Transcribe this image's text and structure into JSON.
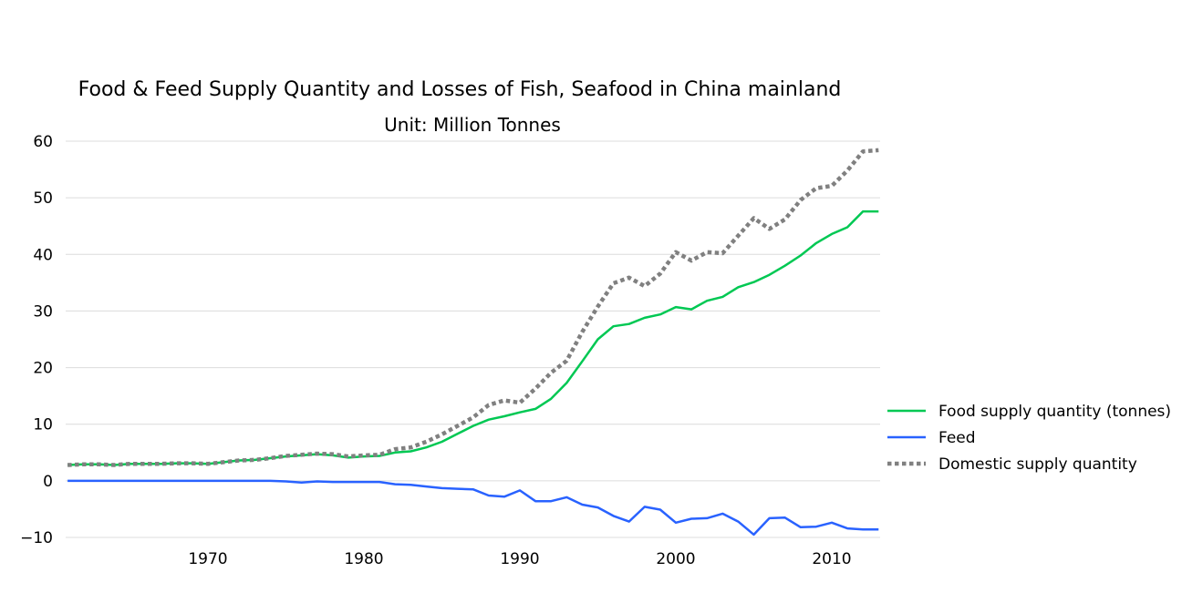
{
  "chart_data": {
    "type": "line",
    "title": "Food & Feed Supply Quantity and Losses of Fish, Seafood in China mainland",
    "subtitle": "Unit: Million Tonnes",
    "xlabel": "",
    "ylabel": "",
    "xlim": [
      1961,
      2013
    ],
    "ylim": [
      -10,
      62
    ],
    "grid": true,
    "legend_position": "right",
    "x_ticks": [
      1970,
      1980,
      1990,
      2000,
      2010
    ],
    "y_ticks": [
      -10,
      0,
      10,
      20,
      30,
      40,
      50,
      60
    ],
    "x_tick_labels": [
      "1970",
      "1980",
      "1990",
      "2000",
      "2010"
    ],
    "y_tick_labels": [
      "−10",
      "0",
      "10",
      "20",
      "30",
      "40",
      "50",
      "60"
    ],
    "x": [
      1961,
      1962,
      1963,
      1964,
      1965,
      1966,
      1967,
      1968,
      1969,
      1970,
      1971,
      1972,
      1973,
      1974,
      1975,
      1976,
      1977,
      1978,
      1979,
      1980,
      1981,
      1982,
      1983,
      1984,
      1985,
      1986,
      1987,
      1988,
      1989,
      1990,
      1991,
      1992,
      1993,
      1994,
      1995,
      1996,
      1997,
      1998,
      1999,
      2000,
      2001,
      2002,
      2003,
      2004,
      2005,
      2006,
      2007,
      2008,
      2009,
      2010,
      2011,
      2012,
      2013
    ],
    "series": [
      {
        "name": "Food supply quantity (tonnes)",
        "legend_label": "Food supply quantity (tonnes)",
        "color": "#00c853",
        "style": "solid",
        "values": [
          2.8,
          2.9,
          2.9,
          2.8,
          3.0,
          3.0,
          3.0,
          3.1,
          3.1,
          3.0,
          3.3,
          3.6,
          3.7,
          4.0,
          4.3,
          4.5,
          4.7,
          4.5,
          4.1,
          4.3,
          4.4,
          5.0,
          5.2,
          5.9,
          6.9,
          8.3,
          9.7,
          10.8,
          11.4,
          12.1,
          12.7,
          14.5,
          17.3,
          21.1,
          25.0,
          27.3,
          27.7,
          28.8,
          29.4,
          30.7,
          30.3,
          31.8,
          32.5,
          34.2,
          35.1,
          36.4,
          38.0,
          39.8,
          42.0,
          43.6,
          44.8,
          47.6,
          47.6
        ]
      },
      {
        "name": "Feed",
        "legend_label": "Feed",
        "color": "#2962ff",
        "style": "solid",
        "values": [
          0.0,
          0.0,
          0.0,
          0.0,
          0.0,
          0.0,
          0.0,
          0.0,
          0.0,
          0.0,
          0.0,
          0.0,
          0.0,
          0.0,
          -0.1,
          -0.3,
          -0.1,
          -0.2,
          -0.2,
          -0.2,
          -0.2,
          -0.6,
          -0.7,
          -1.0,
          -1.3,
          -1.4,
          -1.5,
          -2.6,
          -2.8,
          -1.7,
          -3.6,
          -3.6,
          -2.9,
          -4.2,
          -4.7,
          -6.2,
          -7.2,
          -4.6,
          -5.1,
          -7.4,
          -6.7,
          -6.6,
          -5.8,
          -7.2,
          -9.5,
          -6.6,
          -6.5,
          -8.2,
          -8.1,
          -7.4,
          -8.4,
          -8.6,
          -8.6
        ]
      },
      {
        "name": "Domestic supply quantity",
        "legend_label": "Domestic supply quantity",
        "color": "#808080",
        "style": "dotted",
        "values": [
          2.8,
          2.9,
          2.9,
          2.8,
          3.0,
          3.0,
          3.0,
          3.1,
          3.1,
          3.0,
          3.3,
          3.6,
          3.7,
          4.0,
          4.4,
          4.6,
          4.8,
          4.7,
          4.3,
          4.5,
          4.6,
          5.6,
          5.9,
          6.9,
          8.2,
          9.7,
          11.2,
          13.4,
          14.2,
          13.8,
          16.3,
          19.1,
          21.2,
          26.3,
          30.8,
          34.9,
          35.9,
          34.4,
          36.6,
          40.4,
          38.9,
          40.4,
          40.2,
          43.3,
          46.4,
          44.5,
          46.2,
          49.6,
          51.7,
          52.1,
          54.8,
          58.2,
          58.4
        ]
      }
    ]
  }
}
